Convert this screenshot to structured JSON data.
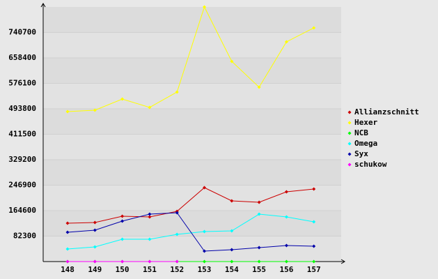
{
  "chart_data": {
    "type": "line",
    "categories": [
      "148",
      "149",
      "150",
      "151",
      "152",
      "153",
      "154",
      "155",
      "156",
      "157"
    ],
    "series": [
      {
        "name": "Allianzschnitt",
        "color": "#cc0000",
        "values": [
          124000,
          126300,
          146600,
          144300,
          162400,
          239000,
          196200,
          191700,
          225500,
          234500
        ]
      },
      {
        "name": "Hexer",
        "color": "#ffff00",
        "values": [
          484800,
          489300,
          525400,
          498400,
          548000,
          823000,
          647200,
          563800,
          710300,
          755400
        ]
      },
      {
        "name": "NCB",
        "color": "#00ff00",
        "values": [
          0,
          0,
          0,
          0,
          0,
          0,
          0,
          0,
          0,
          0
        ]
      },
      {
        "name": "Omega",
        "color": "#00ffff",
        "values": [
          40600,
          47400,
          72200,
          72200,
          87900,
          97000,
          99200,
          153300,
          144300,
          128500
        ]
      },
      {
        "name": "Syx",
        "color": "#0000aa",
        "values": [
          94700,
          101500,
          130800,
          153300,
          157900,
          33800,
          38300,
          45100,
          51900,
          49600
        ]
      },
      {
        "name": "schukow",
        "color": "#ff00ff",
        "values": [
          0,
          0,
          0,
          0,
          0,
          null,
          null,
          null,
          null,
          null
        ]
      }
    ],
    "ylim": [
      0,
      823000
    ],
    "yticks": [
      82300,
      164600,
      246900,
      329200,
      411500,
      493800,
      576100,
      658400,
      740700
    ],
    "grid": true
  }
}
